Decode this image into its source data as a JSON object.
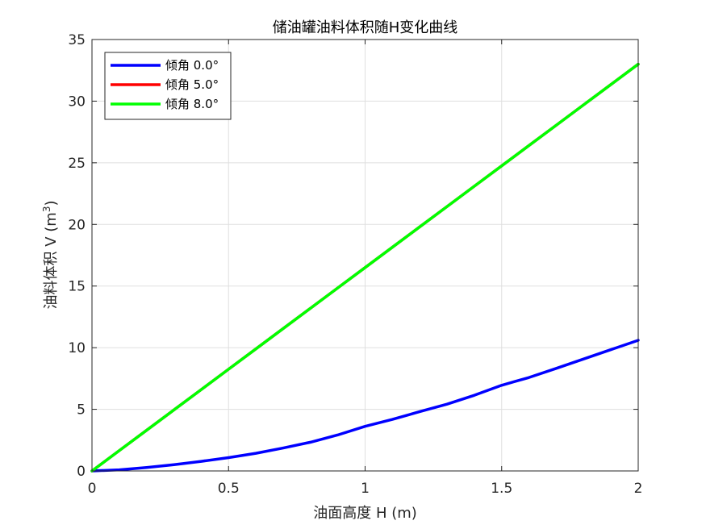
{
  "chart_data": {
    "type": "line",
    "title": "储油罐油料体积随H变化曲线",
    "xlabel": "油面高度 H (m)",
    "ylabel_text": "油料体积 V (m",
    "ylabel_sup": "3",
    "ylabel_close": ")",
    "xlim": [
      0,
      2
    ],
    "ylim": [
      0,
      35
    ],
    "xticks": [
      0,
      0.5,
      1,
      1.5,
      2
    ],
    "xtick_labels": [
      "0",
      "0.5",
      "1",
      "1.5",
      "2"
    ],
    "yticks": [
      0,
      5,
      10,
      15,
      20,
      25,
      30,
      35
    ],
    "ytick_labels": [
      "0",
      "5",
      "10",
      "15",
      "20",
      "25",
      "30",
      "35"
    ],
    "grid": true,
    "legend_position": "top-left",
    "x": [
      0,
      0.1,
      0.2,
      0.3,
      0.4,
      0.5,
      0.6,
      0.7,
      0.8,
      0.9,
      1.0,
      1.1,
      1.2,
      1.3,
      1.4,
      1.5,
      1.6,
      1.7,
      1.8,
      1.9,
      2.0
    ],
    "series": [
      {
        "name": "倾角 0.0°",
        "color": "#0000ff",
        "values": [
          0,
          0.09,
          0.28,
          0.51,
          0.78,
          1.08,
          1.43,
          1.86,
          2.33,
          2.92,
          3.62,
          4.18,
          4.81,
          5.42,
          6.14,
          6.95,
          7.58,
          8.32,
          9.08,
          9.84,
          10.6
        ]
      },
      {
        "name": "倾角 5.0°",
        "color": "#ff0000",
        "values": [
          0,
          1.65,
          3.3,
          4.95,
          6.6,
          8.25,
          9.9,
          11.55,
          13.2,
          14.85,
          16.5,
          18.15,
          19.8,
          21.45,
          23.1,
          24.75,
          26.4,
          28.05,
          29.7,
          31.35,
          33.0
        ]
      },
      {
        "name": "倾角 8.0°",
        "color": "#00ff00",
        "values": [
          0,
          1.65,
          3.3,
          4.95,
          6.6,
          8.25,
          9.9,
          11.55,
          13.2,
          14.85,
          16.5,
          18.15,
          19.8,
          21.45,
          23.1,
          24.75,
          26.4,
          28.05,
          29.7,
          31.35,
          33.0
        ]
      }
    ]
  }
}
